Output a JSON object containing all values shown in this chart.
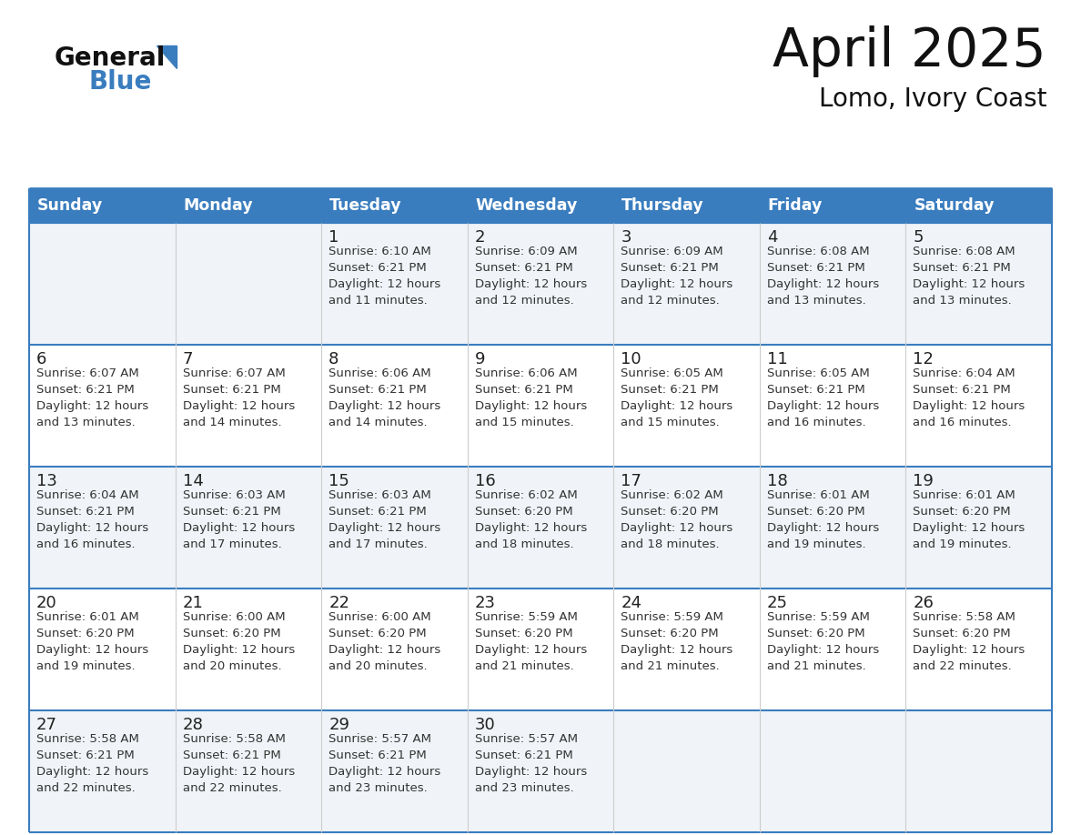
{
  "title": "April 2025",
  "subtitle": "Lomo, Ivory Coast",
  "days_of_week": [
    "Sunday",
    "Monday",
    "Tuesday",
    "Wednesday",
    "Thursday",
    "Friday",
    "Saturday"
  ],
  "header_bg": "#3a7dbf",
  "header_text": "#ffffff",
  "row_bg_odd": "#f0f4f8",
  "row_bg_even": "#ffffff",
  "cell_border_color": "#3a7dbf",
  "cell_inner_border": "#cccccc",
  "day_number_color": "#222222",
  "cell_text_color": "#333333",
  "title_color": "#111111",
  "calendar": [
    [
      {
        "day": null,
        "info": null
      },
      {
        "day": null,
        "info": null
      },
      {
        "day": 1,
        "info": "Sunrise: 6:10 AM\nSunset: 6:21 PM\nDaylight: 12 hours\nand 11 minutes."
      },
      {
        "day": 2,
        "info": "Sunrise: 6:09 AM\nSunset: 6:21 PM\nDaylight: 12 hours\nand 12 minutes."
      },
      {
        "day": 3,
        "info": "Sunrise: 6:09 AM\nSunset: 6:21 PM\nDaylight: 12 hours\nand 12 minutes."
      },
      {
        "day": 4,
        "info": "Sunrise: 6:08 AM\nSunset: 6:21 PM\nDaylight: 12 hours\nand 13 minutes."
      },
      {
        "day": 5,
        "info": "Sunrise: 6:08 AM\nSunset: 6:21 PM\nDaylight: 12 hours\nand 13 minutes."
      }
    ],
    [
      {
        "day": 6,
        "info": "Sunrise: 6:07 AM\nSunset: 6:21 PM\nDaylight: 12 hours\nand 13 minutes."
      },
      {
        "day": 7,
        "info": "Sunrise: 6:07 AM\nSunset: 6:21 PM\nDaylight: 12 hours\nand 14 minutes."
      },
      {
        "day": 8,
        "info": "Sunrise: 6:06 AM\nSunset: 6:21 PM\nDaylight: 12 hours\nand 14 minutes."
      },
      {
        "day": 9,
        "info": "Sunrise: 6:06 AM\nSunset: 6:21 PM\nDaylight: 12 hours\nand 15 minutes."
      },
      {
        "day": 10,
        "info": "Sunrise: 6:05 AM\nSunset: 6:21 PM\nDaylight: 12 hours\nand 15 minutes."
      },
      {
        "day": 11,
        "info": "Sunrise: 6:05 AM\nSunset: 6:21 PM\nDaylight: 12 hours\nand 16 minutes."
      },
      {
        "day": 12,
        "info": "Sunrise: 6:04 AM\nSunset: 6:21 PM\nDaylight: 12 hours\nand 16 minutes."
      }
    ],
    [
      {
        "day": 13,
        "info": "Sunrise: 6:04 AM\nSunset: 6:21 PM\nDaylight: 12 hours\nand 16 minutes."
      },
      {
        "day": 14,
        "info": "Sunrise: 6:03 AM\nSunset: 6:21 PM\nDaylight: 12 hours\nand 17 minutes."
      },
      {
        "day": 15,
        "info": "Sunrise: 6:03 AM\nSunset: 6:21 PM\nDaylight: 12 hours\nand 17 minutes."
      },
      {
        "day": 16,
        "info": "Sunrise: 6:02 AM\nSunset: 6:20 PM\nDaylight: 12 hours\nand 18 minutes."
      },
      {
        "day": 17,
        "info": "Sunrise: 6:02 AM\nSunset: 6:20 PM\nDaylight: 12 hours\nand 18 minutes."
      },
      {
        "day": 18,
        "info": "Sunrise: 6:01 AM\nSunset: 6:20 PM\nDaylight: 12 hours\nand 19 minutes."
      },
      {
        "day": 19,
        "info": "Sunrise: 6:01 AM\nSunset: 6:20 PM\nDaylight: 12 hours\nand 19 minutes."
      }
    ],
    [
      {
        "day": 20,
        "info": "Sunrise: 6:01 AM\nSunset: 6:20 PM\nDaylight: 12 hours\nand 19 minutes."
      },
      {
        "day": 21,
        "info": "Sunrise: 6:00 AM\nSunset: 6:20 PM\nDaylight: 12 hours\nand 20 minutes."
      },
      {
        "day": 22,
        "info": "Sunrise: 6:00 AM\nSunset: 6:20 PM\nDaylight: 12 hours\nand 20 minutes."
      },
      {
        "day": 23,
        "info": "Sunrise: 5:59 AM\nSunset: 6:20 PM\nDaylight: 12 hours\nand 21 minutes."
      },
      {
        "day": 24,
        "info": "Sunrise: 5:59 AM\nSunset: 6:20 PM\nDaylight: 12 hours\nand 21 minutes."
      },
      {
        "day": 25,
        "info": "Sunrise: 5:59 AM\nSunset: 6:20 PM\nDaylight: 12 hours\nand 21 minutes."
      },
      {
        "day": 26,
        "info": "Sunrise: 5:58 AM\nSunset: 6:20 PM\nDaylight: 12 hours\nand 22 minutes."
      }
    ],
    [
      {
        "day": 27,
        "info": "Sunrise: 5:58 AM\nSunset: 6:21 PM\nDaylight: 12 hours\nand 22 minutes."
      },
      {
        "day": 28,
        "info": "Sunrise: 5:58 AM\nSunset: 6:21 PM\nDaylight: 12 hours\nand 22 minutes."
      },
      {
        "day": 29,
        "info": "Sunrise: 5:57 AM\nSunset: 6:21 PM\nDaylight: 12 hours\nand 23 minutes."
      },
      {
        "day": 30,
        "info": "Sunrise: 5:57 AM\nSunset: 6:21 PM\nDaylight: 12 hours\nand 23 minutes."
      },
      {
        "day": null,
        "info": null
      },
      {
        "day": null,
        "info": null
      },
      {
        "day": null,
        "info": null
      }
    ]
  ]
}
